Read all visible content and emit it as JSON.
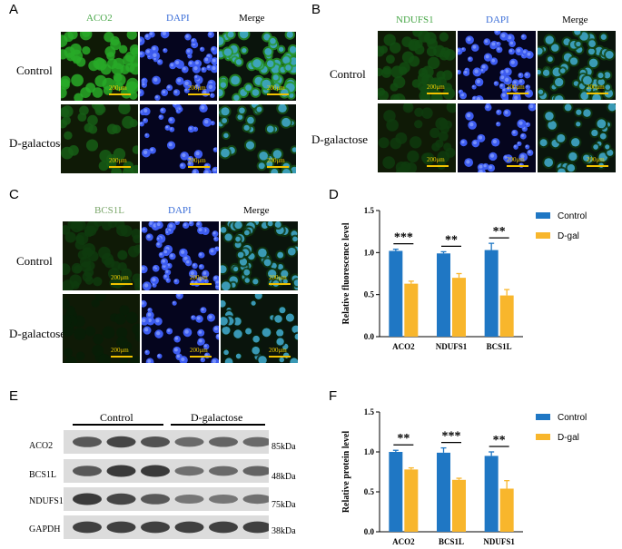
{
  "panels": {
    "A": {
      "letter": "A",
      "columns": [
        "ACO2",
        "DAPI",
        "Merge"
      ],
      "col_colors": [
        "#4aa84a",
        "#3c6fd8",
        "#222222"
      ],
      "rows": [
        "Control",
        "D-galactose"
      ],
      "scale": "200μm"
    },
    "B": {
      "letter": "B",
      "columns": [
        "NDUFS1",
        "DAPI",
        "Merge"
      ],
      "col_colors": [
        "#4aa84a",
        "#3c6fd8",
        "#222222"
      ],
      "rows": [
        "Control",
        "D-galactose"
      ],
      "scale": "200μm"
    },
    "C": {
      "letter": "C",
      "columns": [
        "BCS1L",
        "DAPI",
        "Merge"
      ],
      "col_colors": [
        "#7aa66a",
        "#3c6fd8",
        "#222222"
      ],
      "rows": [
        "Control",
        "D-galactose"
      ],
      "scale": "200μm"
    },
    "D": {
      "letter": "D"
    },
    "E": {
      "letter": "E",
      "groups": [
        "Control",
        "D-galactose"
      ],
      "bands": [
        {
          "name": "ACO2",
          "kda": "85kDa"
        },
        {
          "name": "BCS1L",
          "kda": "48kDa"
        },
        {
          "name": "NDUFS1",
          "kda": "75kDa"
        },
        {
          "name": "GAPDH",
          "kda": "38kDa"
        }
      ]
    },
    "F": {
      "letter": "F"
    }
  },
  "chart_data": [
    {
      "type": "bar",
      "panel": "D",
      "categories": [
        "ACO2",
        "NDUFS1",
        "BCS1L"
      ],
      "series": [
        {
          "name": "Control",
          "color": "#1f77c4",
          "values": [
            1.02,
            0.99,
            1.03
          ],
          "errors": [
            0.02,
            0.02,
            0.08
          ]
        },
        {
          "name": "D-gal",
          "color": "#f8b62c",
          "values": [
            0.63,
            0.7,
            0.49
          ],
          "errors": [
            0.03,
            0.05,
            0.07
          ]
        }
      ],
      "significance": [
        "***",
        "**",
        "**"
      ],
      "ylabel": "Relative fluorescence level",
      "ylim": [
        0,
        1.5
      ],
      "yticks": [
        "0.0",
        "0.5",
        "1.0",
        "1.5"
      ],
      "legend": "top-right"
    },
    {
      "type": "bar",
      "panel": "F",
      "categories": [
        "ACO2",
        "BCS1L",
        "NDUFS1"
      ],
      "series": [
        {
          "name": "Control",
          "color": "#1f77c4",
          "values": [
            1.0,
            0.99,
            0.95
          ],
          "errors": [
            0.02,
            0.06,
            0.05
          ]
        },
        {
          "name": "D-gal",
          "color": "#f8b62c",
          "values": [
            0.78,
            0.65,
            0.54
          ],
          "errors": [
            0.02,
            0.02,
            0.1
          ]
        }
      ],
      "significance": [
        "**",
        "***",
        "**"
      ],
      "ylabel": "Relative protein level",
      "ylim": [
        0,
        1.5
      ],
      "yticks": [
        "0.0",
        "0.5",
        "1.0",
        "1.5"
      ],
      "legend": "top-right"
    }
  ]
}
